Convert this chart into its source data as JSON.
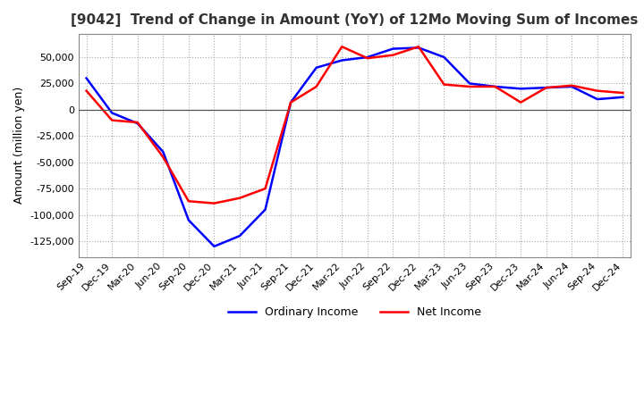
{
  "title": "[9042]  Trend of Change in Amount (YoY) of 12Mo Moving Sum of Incomes",
  "ylabel": "Amount (million yen)",
  "ylim": [
    -140000,
    72000
  ],
  "yticks": [
    -125000,
    -100000,
    -75000,
    -50000,
    -25000,
    0,
    25000,
    50000
  ],
  "x_labels": [
    "Sep-19",
    "Dec-19",
    "Mar-20",
    "Jun-20",
    "Sep-20",
    "Dec-20",
    "Mar-21",
    "Jun-21",
    "Sep-21",
    "Dec-21",
    "Mar-22",
    "Jun-22",
    "Sep-22",
    "Dec-22",
    "Mar-23",
    "Jun-23",
    "Sep-23",
    "Dec-23",
    "Mar-24",
    "Jun-24",
    "Sep-24",
    "Dec-24"
  ],
  "ordinary_income": [
    30000,
    -3000,
    -13000,
    -40000,
    -105000,
    -130000,
    -120000,
    -95000,
    7000,
    40000,
    47000,
    50000,
    58000,
    59000,
    50000,
    25000,
    22000,
    20000,
    21000,
    22000,
    10000,
    12000
  ],
  "net_income": [
    18000,
    -10000,
    -12000,
    -45000,
    -87000,
    -89000,
    -84000,
    -75000,
    7000,
    22000,
    60000,
    49000,
    52000,
    60000,
    24000,
    22000,
    22000,
    7000,
    21000,
    23000,
    18000,
    16000
  ],
  "ordinary_color": "#0000ff",
  "net_color": "#ff0000",
  "grid_color": "#aaaaaa",
  "bg_color": "#ffffff",
  "legend_labels": [
    "Ordinary Income",
    "Net Income"
  ]
}
